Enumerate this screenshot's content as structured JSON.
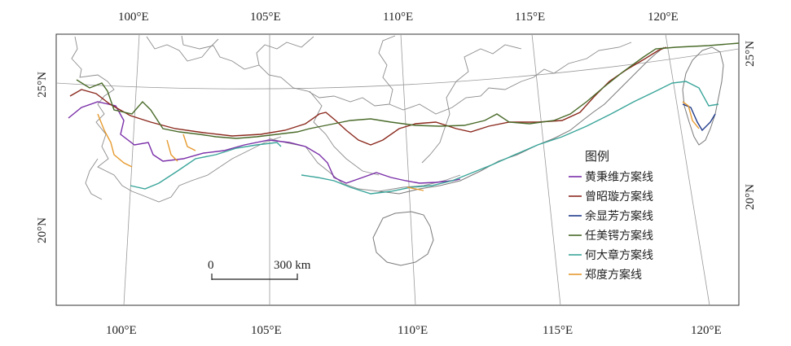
{
  "top_ticks": [
    "100°E",
    "105°E",
    "110°E",
    "115°E",
    "120°E"
  ],
  "bottom_ticks": [
    "100°E",
    "105°E",
    "110°E",
    "115°E",
    "120°E"
  ],
  "left_ticks": [
    "25°N",
    "20°N"
  ],
  "right_ticks": [
    "25°N",
    "20°N"
  ],
  "scale_bar": {
    "start": "0",
    "end": "300 km"
  },
  "legend": {
    "title": "图例",
    "items": [
      {
        "label": "黄秉维方案线",
        "color": "#7a2fa8"
      },
      {
        "label": "曾昭璇方案线",
        "color": "#8b2a1e"
      },
      {
        "label": "余显芳方案线",
        "color": "#1f3a8a"
      },
      {
        "label": "任美锷方案线",
        "color": "#4a6b2a"
      },
      {
        "label": "何大章方案线",
        "color": "#3aa59a"
      },
      {
        "label": "郑度方案线",
        "color": "#e69a2e"
      }
    ]
  },
  "colors": {
    "boundary": "#8c8c8c",
    "graticule": "#9a9a9a",
    "frame": "#333333"
  }
}
